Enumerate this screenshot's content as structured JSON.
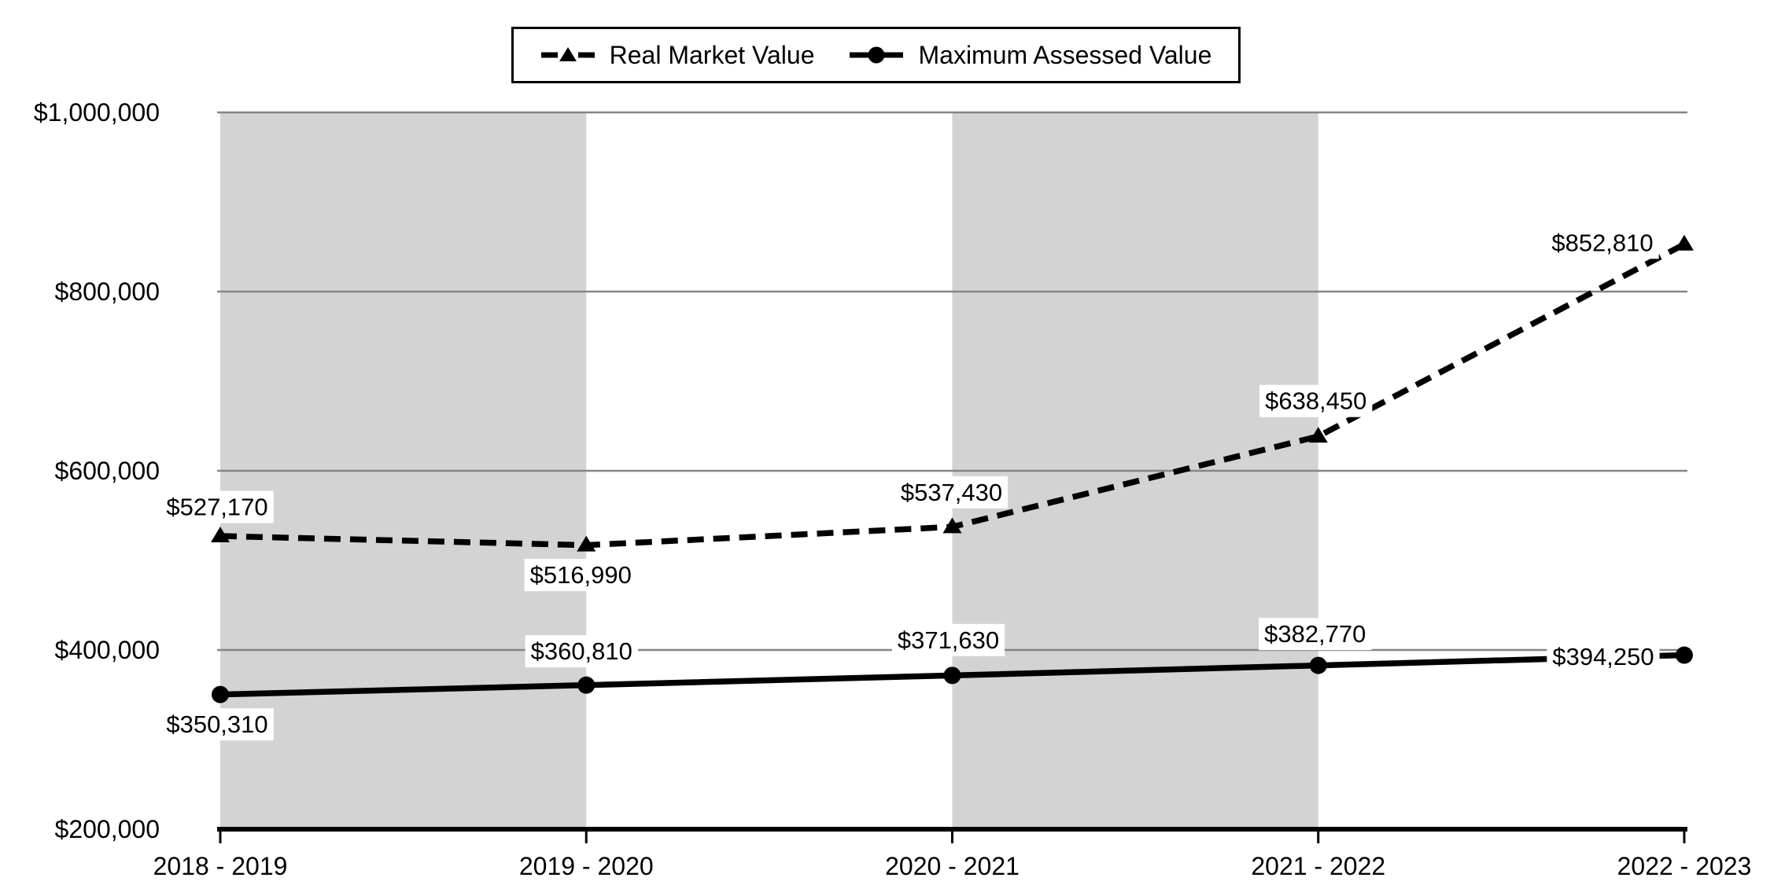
{
  "chart_data": {
    "type": "line",
    "title": "",
    "xlabel": "",
    "ylabel": "",
    "categories": [
      "2018 - 2019",
      "2019 - 2020",
      "2020 - 2021",
      "2021 - 2022",
      "2022 - 2023"
    ],
    "series": [
      {
        "name": "Real Market Value",
        "line_style": "dashed",
        "marker": "triangle",
        "color": "#000000",
        "values": [
          527170,
          516990,
          537430,
          638450,
          852810
        ],
        "labels": [
          "$527,170",
          "$516,990",
          "$537,430",
          "$638,450",
          "$852,810"
        ],
        "label_offsets": [
          [
            -4,
            -37
          ],
          [
            -7,
            38
          ],
          [
            -1,
            -44
          ],
          [
            -3,
            -45
          ],
          [
            -104,
            -2
          ]
        ]
      },
      {
        "name": "Maximum Assessed Value",
        "line_style": "solid",
        "marker": "circle",
        "color": "#000000",
        "values": [
          350310,
          360810,
          371630,
          382770,
          394250
        ],
        "labels": [
          "$350,310",
          "$360,810",
          "$371,630",
          "$382,770",
          "$394,250"
        ],
        "label_offsets": [
          [
            -4,
            38
          ],
          [
            -6,
            -43
          ],
          [
            -5,
            -45
          ],
          [
            -4,
            -40
          ],
          [
            -103,
            2
          ]
        ]
      }
    ],
    "y_axis": {
      "min": 200000,
      "max": 1000000,
      "ticks": [
        {
          "value": 1000000,
          "label": "$1,000,000"
        },
        {
          "value": 800000,
          "label": "$800,000"
        },
        {
          "value": 600000,
          "label": "$600,000"
        },
        {
          "value": 400000,
          "label": "$400,000"
        },
        {
          "value": 200000,
          "label": "$200,000"
        }
      ]
    },
    "ylim": [
      200000,
      1000000
    ],
    "grid": true,
    "legend_position": "top-center",
    "background_bands": {
      "between_category_indices": [
        [
          0,
          1
        ],
        [
          2,
          3
        ]
      ]
    },
    "colors": {
      "line": "#000000",
      "axis": "#000000",
      "gridline": "#858585",
      "band": "#d3d3d3",
      "label_background": "#ffffff",
      "text": "#000000"
    }
  }
}
